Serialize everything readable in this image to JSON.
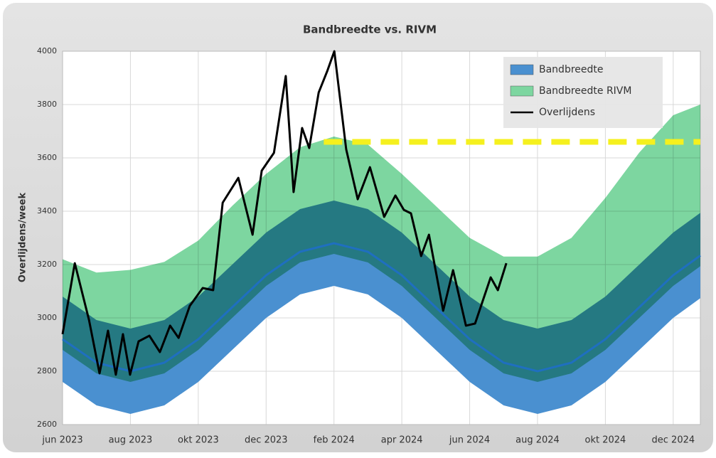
{
  "chart_data": {
    "type": "band_line",
    "title": "Bandbreedte vs. RIVM",
    "y_label": "Overlijdens/week",
    "xlim": [
      0,
      18.8
    ],
    "xticks": [
      {
        "value": 0,
        "label": "jun 2023"
      },
      {
        "value": 2,
        "label": "aug 2023"
      },
      {
        "value": 4,
        "label": "okt 2023"
      },
      {
        "value": 6,
        "label": "dec 2023"
      },
      {
        "value": 8,
        "label": "feb 2024"
      },
      {
        "value": 10,
        "label": "apr 2024"
      },
      {
        "value": 12,
        "label": "jun 2024"
      },
      {
        "value": 14,
        "label": "aug 2024"
      },
      {
        "value": 16,
        "label": "okt 2024"
      },
      {
        "value": 18,
        "label": "dec 2024"
      }
    ],
    "ylim": [
      2600,
      4000
    ],
    "yticks": [
      2600,
      2800,
      3000,
      3200,
      3400,
      3600,
      3800,
      4000
    ],
    "grid": true,
    "legend": "top-right",
    "x": [
      0,
      1,
      2,
      3,
      4,
      5,
      6,
      7,
      8,
      9,
      10,
      11,
      12,
      13,
      14,
      15,
      16,
      17,
      18,
      18.8
    ],
    "series": [
      {
        "name": "Bandbreedte",
        "color": "#4a90d0",
        "center_color": "#1f6fc0",
        "lower": [
          2760,
          2672,
          2640,
          2672,
          2760,
          2880,
          3000,
          3088,
          3120,
          3088,
          3000,
          2880,
          2760,
          2672,
          2640,
          2672,
          2760,
          2880,
          3000,
          3074
        ],
        "upper": [
          3080,
          2992,
          2960,
          2992,
          3080,
          3200,
          3320,
          3408,
          3440,
          3408,
          3320,
          3200,
          3080,
          2992,
          2960,
          2992,
          3080,
          3200,
          3320,
          3394
        ],
        "center": [
          2920,
          2832,
          2800,
          2832,
          2920,
          3040,
          3160,
          3248,
          3280,
          3248,
          3160,
          3040,
          2920,
          2832,
          2800,
          2832,
          2920,
          3040,
          3160,
          3234
        ]
      },
      {
        "name": "Bandbreedte RIVM",
        "color": "#7dd6a0",
        "lower": [
          2880,
          2792,
          2760,
          2792,
          2880,
          3000,
          3120,
          3208,
          3240,
          3208,
          3120,
          3000,
          2880,
          2792,
          2760,
          2792,
          2880,
          3000,
          3120,
          3194
        ],
        "upper": [
          3220,
          3170,
          3180,
          3210,
          3290,
          3420,
          3540,
          3640,
          3680,
          3650,
          3540,
          3420,
          3300,
          3230,
          3230,
          3300,
          3450,
          3620,
          3760,
          3800
        ]
      },
      {
        "name": "Overlijdens",
        "color": "#000000",
        "x": [
          0,
          0.36,
          0.78,
          1.09,
          1.34,
          1.57,
          1.78,
          1.99,
          2.24,
          2.56,
          2.87,
          3.17,
          3.42,
          3.75,
          4.13,
          4.44,
          4.72,
          5.18,
          5.6,
          5.87,
          6.23,
          6.58,
          6.81,
          7.06,
          7.27,
          7.55,
          7.8,
          8.01,
          8.36,
          8.7,
          9.06,
          9.48,
          9.81,
          10.06,
          10.27,
          10.57,
          10.8,
          11.22,
          11.51,
          11.89,
          12.16,
          12.62,
          12.83,
          13.08
        ],
        "values": [
          2939,
          3205,
          2992,
          2792,
          2952,
          2787,
          2939,
          2787,
          2912,
          2933,
          2872,
          2971,
          2925,
          3045,
          3112,
          3104,
          3432,
          3525,
          3312,
          3552,
          3619,
          3907,
          3472,
          3712,
          3637,
          3845,
          3925,
          4000,
          3632,
          3445,
          3565,
          3379,
          3459,
          3405,
          3392,
          3232,
          3312,
          3027,
          3179,
          2971,
          2979,
          3152,
          3104,
          3205
        ]
      }
    ],
    "reference_line": {
      "value": 3660,
      "x_start": 7.7,
      "color": "#f5f01e"
    }
  }
}
